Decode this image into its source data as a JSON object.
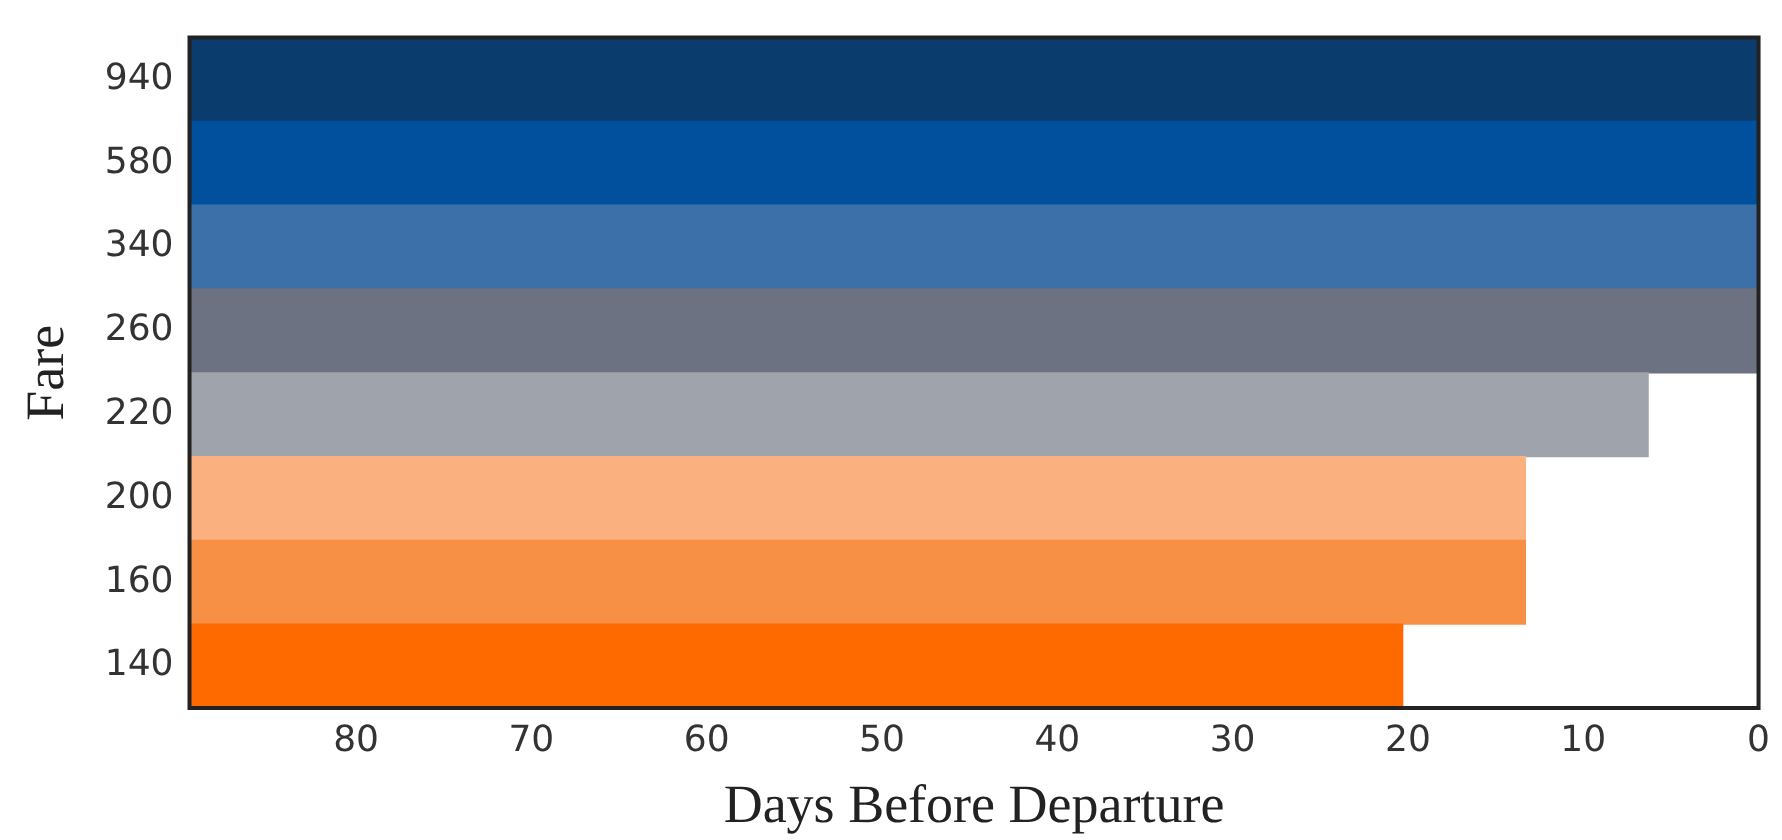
{
  "chart_data": {
    "type": "bar",
    "orientation": "horizontal",
    "xlabel": "Days Before Departure",
    "ylabel": "Fare",
    "categories": [
      "940",
      "580",
      "340",
      "260",
      "220",
      "200",
      "160",
      "140"
    ],
    "values": [
      89.5,
      89.5,
      89.5,
      89.5,
      83.2,
      76.2,
      76.2,
      69.2
    ],
    "base": [
      0,
      0,
      0,
      0,
      6.3,
      13.3,
      13.3,
      20.3
    ],
    "colors": [
      "#0a3d6e",
      "#00509e",
      "#3b70a8",
      "#6c7281",
      "#9ea3ac",
      "#fbb07f",
      "#f78f45",
      "#ff6a00"
    ],
    "xlim": [
      89.5,
      0
    ],
    "xticks": [
      80,
      70,
      60,
      50,
      40,
      30,
      20,
      10,
      0
    ],
    "grid": false,
    "legend": false
  }
}
